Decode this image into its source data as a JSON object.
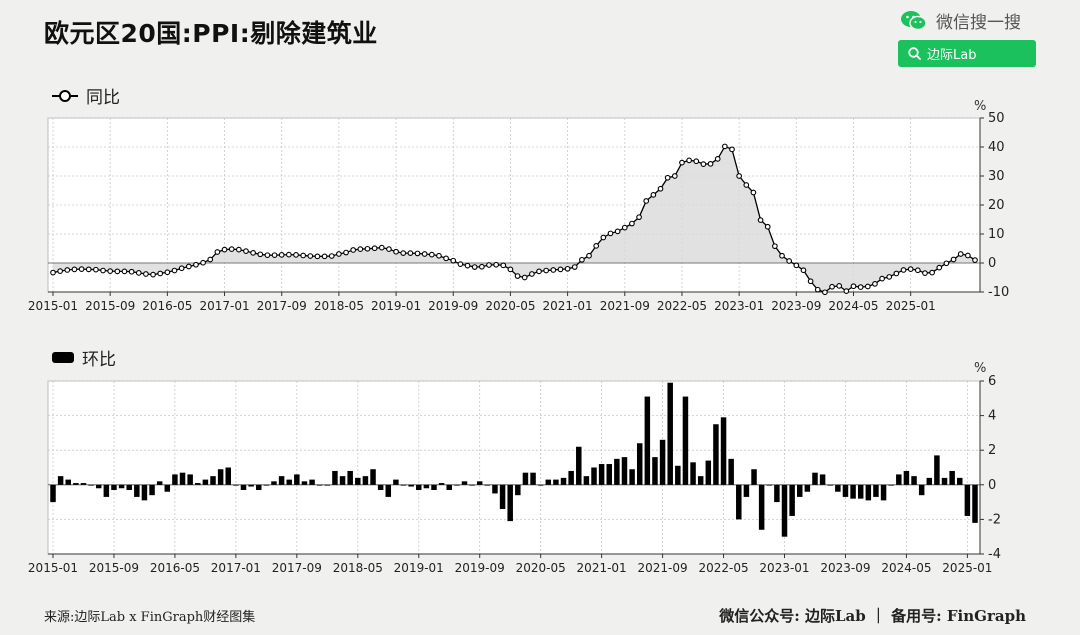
{
  "title": "欧元区20国:PPI:剔除建筑业",
  "brand": {
    "wechat_label": "微信搜一搜",
    "search_label": "边际Lab",
    "accent": "#1bc15c"
  },
  "footer": {
    "source": "来源:边际Lab x FinGraph财经图集",
    "account": "微信公众号: 边际Lab ｜ 备用号: FinGraph"
  },
  "chart_data": [
    {
      "type": "line",
      "legend": "同比",
      "unit": "%",
      "ylim": [
        -10,
        50
      ],
      "yticks": [
        "50",
        "40",
        "30",
        "20",
        "10",
        "0",
        "-10"
      ],
      "x_ticks": [
        "2015-01",
        "2015-09",
        "2016-05",
        "2017-01",
        "2017-09",
        "2018-05",
        "2019-01",
        "2019-09",
        "2020-05",
        "2021-01",
        "2021-09",
        "2022-05",
        "2023-01",
        "2023-09",
        "2024-05",
        "2025-01"
      ],
      "x_start": "2015-01",
      "grid": true,
      "values": [
        -3.3,
        -2.8,
        -2.4,
        -2.2,
        -2.1,
        -2.2,
        -2.3,
        -2.6,
        -2.8,
        -2.9,
        -2.9,
        -3.0,
        -3.4,
        -3.8,
        -4.0,
        -3.6,
        -3.2,
        -2.6,
        -1.8,
        -1.2,
        -0.6,
        0.1,
        1.2,
        3.8,
        4.6,
        4.8,
        4.6,
        4.1,
        3.5,
        3.0,
        2.7,
        2.7,
        2.8,
        2.9,
        2.8,
        2.6,
        2.4,
        2.3,
        2.3,
        2.4,
        3.1,
        3.6,
        4.5,
        4.8,
        4.9,
        5.1,
        5.3,
        4.8,
        3.9,
        3.4,
        3.4,
        3.3,
        3.1,
        2.9,
        2.5,
        1.6,
        0.8,
        -0.4,
        -0.9,
        -1.4,
        -1.3,
        -0.7,
        -0.6,
        -0.8,
        -2.2,
        -4.5,
        -5.0,
        -3.8,
        -2.9,
        -2.6,
        -2.4,
        -2.2,
        -2.0,
        -1.4,
        1.1,
        2.5,
        5.9,
        8.8,
        10.2,
        10.9,
        12.2,
        13.6,
        15.8,
        21.4,
        23.5,
        25.6,
        29.4,
        30.0,
        34.6,
        35.4,
        35.1,
        34.1,
        34.2,
        35.9,
        40.2,
        39.2,
        30.0,
        26.9,
        24.3,
        14.8,
        12.5,
        5.8,
        2.5,
        0.7,
        -0.8,
        -2.5,
        -6.3,
        -9.2,
        -10.1,
        -8.2,
        -7.9,
        -9.7,
        -8.0,
        -8.3,
        -8.1,
        -7.2,
        -5.4,
        -4.8,
        -3.6,
        -2.4,
        -2.1,
        -2.5,
        -3.5,
        -3.3,
        -1.6,
        -0.1,
        1.2,
        3.1,
        2.6,
        1.0
      ]
    },
    {
      "type": "bar",
      "legend": "环比",
      "unit": "%",
      "ylim": [
        -4,
        6
      ],
      "yticks": [
        "6",
        "4",
        "2",
        "0",
        "-2",
        "-4"
      ],
      "x_ticks": [
        "2015-01",
        "2015-09",
        "2016-05",
        "2017-01",
        "2017-09",
        "2018-05",
        "2019-01",
        "2019-09",
        "2020-05",
        "2021-01",
        "2021-09",
        "2022-05",
        "2023-01",
        "2023-09",
        "2024-05",
        "2025-01"
      ],
      "x_start": "2015-01",
      "grid": true,
      "values": [
        -1.0,
        0.5,
        0.3,
        0.1,
        0.1,
        0.0,
        -0.2,
        -0.7,
        -0.3,
        -0.2,
        -0.3,
        -0.7,
        -0.9,
        -0.6,
        0.2,
        -0.4,
        0.6,
        0.7,
        0.6,
        0.1,
        0.3,
        0.5,
        0.9,
        1.0,
        0.0,
        -0.3,
        -0.1,
        -0.3,
        0.0,
        0.2,
        0.5,
        0.3,
        0.6,
        0.2,
        0.3,
        0.0,
        0.0,
        0.8,
        0.5,
        0.8,
        0.4,
        0.5,
        0.9,
        -0.3,
        -0.7,
        0.3,
        0.0,
        -0.1,
        -0.3,
        -0.2,
        -0.3,
        0.1,
        -0.3,
        0.0,
        0.2,
        0.0,
        0.2,
        0.0,
        -0.5,
        -1.4,
        -2.1,
        -0.6,
        0.7,
        0.7,
        0.0,
        0.3,
        0.3,
        0.4,
        0.8,
        2.2,
        0.5,
        1.0,
        1.2,
        1.2,
        1.5,
        1.6,
        0.9,
        2.4,
        5.1,
        1.6,
        2.6,
        5.9,
        1.1,
        5.1,
        1.3,
        0.5,
        1.4,
        3.5,
        3.9,
        1.5,
        -2.0,
        -0.7,
        0.9,
        -2.6,
        0.0,
        -1.0,
        -3.0,
        -1.8,
        -0.7,
        -0.4,
        0.7,
        0.6,
        0.0,
        -0.4,
        -0.7,
        -0.8,
        -0.8,
        -0.9,
        -0.7,
        -0.9,
        0.0,
        0.6,
        0.8,
        0.5,
        -0.6,
        0.4,
        1.7,
        0.4,
        0.8,
        0.4,
        -1.8,
        -2.2
      ]
    }
  ]
}
